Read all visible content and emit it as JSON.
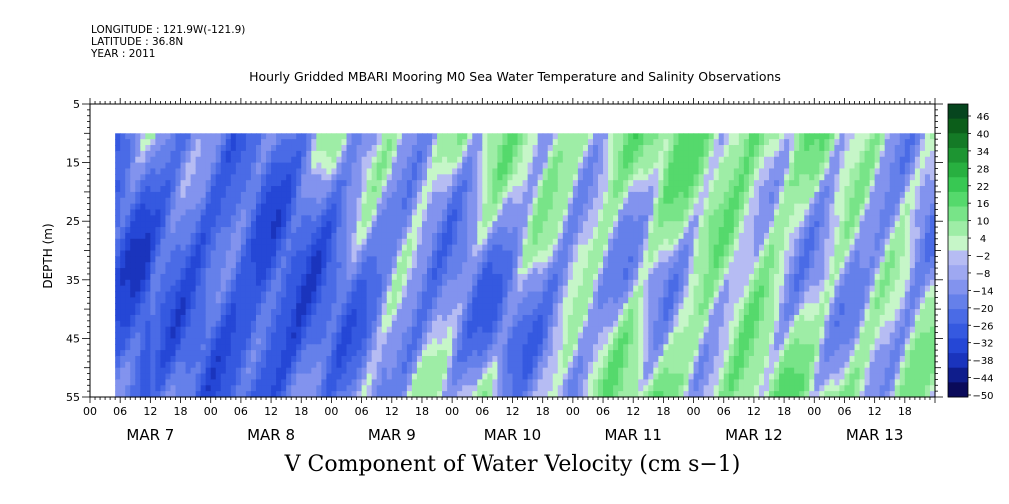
{
  "header": {
    "longitude": "LONGITUDE : 121.9W(-121.9)",
    "latitude": "LATITUDE : 36.8N",
    "year": "YEAR : 2011"
  },
  "chart_data": {
    "type": "heatmap",
    "title": "Hourly Gridded MBARI Mooring M0 Sea Water Temperature and Salinity Observations",
    "xlabel": "V Component of Water Velocity (cm s−1)",
    "ylabel": "DEPTH (m)",
    "y_ticks": [
      "5",
      "15",
      "25",
      "35",
      "45",
      "55"
    ],
    "ylim": [
      5,
      55
    ],
    "y_reversed": true,
    "x_hour_ticks": [
      "00",
      "06",
      "12",
      "18"
    ],
    "x_days": [
      "MAR  7",
      "MAR  8",
      "MAR  9",
      "MAR 10",
      "MAR 11",
      "MAR 12",
      "MAR 13"
    ],
    "data_coverage": {
      "depth_range": [
        10,
        55
      ],
      "start": "MAR 7 05:00",
      "end": "MAR 13 end"
    },
    "colorbar": {
      "levels": [
        -50,
        -44,
        -38,
        -32,
        -26,
        -20,
        -14,
        -8,
        -2,
        4,
        10,
        16,
        22,
        28,
        34,
        40,
        46
      ],
      "labels": [
        "46",
        "40",
        "34",
        "28",
        "22",
        "16",
        "10",
        "4",
        "−2",
        "−8",
        "−14",
        "−20",
        "−26",
        "−32",
        "−38",
        "−44",
        "−50"
      ],
      "neg_colors": [
        "#0a0a5a",
        "#0f1d8c",
        "#1a34bd",
        "#2547d6",
        "#3559e0",
        "#4a6be6",
        "#6580ea",
        "#8293ee",
        "#9ea8f1",
        "#b6bcf3"
      ],
      "pos_colors": [
        "#c6f6c8",
        "#9eeda6",
        "#78e488",
        "#55d96c",
        "#38c853",
        "#28b040",
        "#1d9532",
        "#147a26",
        "#0c5e1a",
        "#06451e"
      ]
    },
    "day_profiles": [
      {
        "day": "MAR 7",
        "mean_velocity_by_depth": [
          -6,
          -12,
          -18,
          -16,
          -14,
          -10
        ]
      },
      {
        "day": "MAR 8",
        "mean_velocity_by_depth": [
          -10,
          -14,
          -20,
          -24,
          -26,
          -22
        ]
      },
      {
        "day": "MAR 9",
        "mean_velocity_by_depth": [
          4,
          0,
          -8,
          -10,
          -8,
          2
        ]
      },
      {
        "day": "MAR 10",
        "mean_velocity_by_depth": [
          6,
          2,
          -2,
          -10,
          -14,
          -4
        ]
      },
      {
        "day": "MAR 11",
        "mean_velocity_by_depth": [
          10,
          8,
          2,
          -4,
          4,
          8
        ]
      },
      {
        "day": "MAR 12",
        "mean_velocity_by_depth": [
          14,
          10,
          6,
          2,
          4,
          8
        ]
      },
      {
        "day": "MAR 13",
        "mean_velocity_by_depth": [
          4,
          -2,
          -6,
          -4,
          0,
          6
        ]
      }
    ]
  }
}
